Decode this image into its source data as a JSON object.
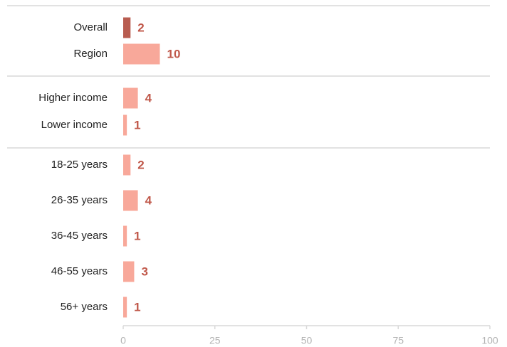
{
  "chart_data": {
    "type": "bar",
    "orientation": "horizontal",
    "categories": [
      "Overall",
      "Region",
      "Higher income",
      "Lower income",
      "18-25 years",
      "26-35 years",
      "36-45 years",
      "46-55 years",
      "56+ years"
    ],
    "values": [
      2,
      10,
      4,
      1,
      2,
      4,
      1,
      3,
      1
    ],
    "colors": [
      "#b85c50",
      "#f8a89a",
      "#f8a89a",
      "#f8a89a",
      "#f8a89a",
      "#f8a89a",
      "#f8a89a",
      "#f8a89a",
      "#f8a89a"
    ],
    "xlim": [
      0,
      100
    ],
    "xticks": [
      0,
      25,
      50,
      75,
      100
    ]
  }
}
